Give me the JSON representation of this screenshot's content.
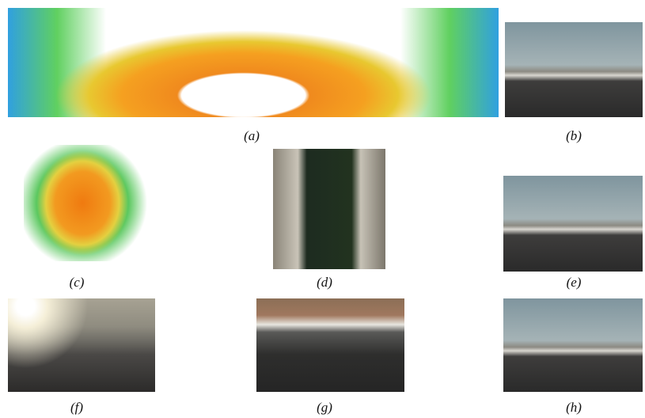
{
  "figure": {
    "panels": [
      {
        "caption": "(a)"
      },
      {
        "caption": "(b)"
      },
      {
        "caption": "(c)"
      },
      {
        "caption": "(d)"
      },
      {
        "caption": "(e)"
      },
      {
        "caption": "(f)"
      },
      {
        "caption": "(g)"
      },
      {
        "caption": "(h)"
      }
    ]
  }
}
